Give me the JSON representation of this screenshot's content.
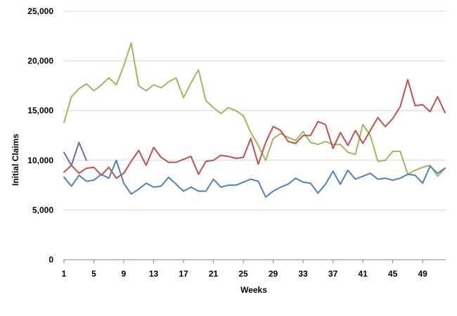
{
  "chart_data": {
    "type": "line",
    "title": "",
    "xlabel": "Weeks",
    "ylabel": "Initial Claims",
    "ylim": [
      0,
      25000
    ],
    "xlim": [
      1,
      52
    ],
    "grid": true,
    "y_ticks": [
      0,
      5000,
      10000,
      15000,
      20000,
      25000
    ],
    "y_tick_labels": [
      "0",
      "5,000",
      "10,000",
      "15,000",
      "20,000",
      "25,000"
    ],
    "x_ticks": [
      1,
      5,
      9,
      13,
      17,
      21,
      25,
      29,
      33,
      37,
      41,
      45,
      49
    ],
    "x_tick_labels": [
      "1",
      "5",
      "9",
      "13",
      "17",
      "21",
      "25",
      "29",
      "33",
      "37",
      "41",
      "45",
      "49"
    ],
    "series": [
      {
        "color": "#9bbb59",
        "x": [
          1,
          2,
          3,
          4,
          5,
          6,
          7,
          8,
          9,
          10,
          11,
          12,
          13,
          14,
          15,
          16,
          17,
          18,
          19,
          20,
          21,
          22,
          23,
          24,
          25,
          26,
          27,
          28,
          29,
          30,
          31,
          32,
          33,
          34,
          35,
          36,
          37,
          38,
          39,
          40,
          41,
          42,
          43,
          44,
          45,
          46,
          47,
          48,
          49,
          50,
          51,
          52
        ],
        "values": [
          13800,
          16400,
          17200,
          17700,
          17000,
          17600,
          18300,
          17600,
          19500,
          21800,
          17500,
          17000,
          17600,
          17300,
          17900,
          18300,
          16300,
          17800,
          19100,
          16000,
          15300,
          14700,
          15300,
          15000,
          14500,
          12800,
          11500,
          10000,
          12200,
          12700,
          12300,
          12000,
          12900,
          11800,
          11600,
          11900,
          11600,
          11600,
          10800,
          10600,
          13600,
          12500,
          9900,
          10000,
          10900,
          10900,
          8600,
          9000,
          9300,
          9500,
          8400,
          9200
        ]
      },
      {
        "color": "#c0504d",
        "x": [
          1,
          2,
          3,
          4,
          5,
          6,
          7,
          8,
          9,
          10,
          11,
          12,
          13,
          14,
          15,
          16,
          17,
          18,
          19,
          20,
          21,
          22,
          23,
          24,
          25,
          26,
          27,
          28,
          29,
          30,
          31,
          32,
          33,
          34,
          35,
          36,
          37,
          38,
          39,
          40,
          41,
          42,
          43,
          44,
          45,
          46,
          47,
          48,
          49,
          50,
          51,
          52
        ],
        "values": [
          8800,
          9500,
          8700,
          9200,
          9300,
          8500,
          9300,
          8200,
          8700,
          9900,
          11000,
          9500,
          11300,
          10300,
          9800,
          9800,
          10100,
          10400,
          8600,
          9900,
          10000,
          10500,
          10400,
          10200,
          10300,
          12200,
          9600,
          11800,
          13400,
          13000,
          11900,
          11700,
          12500,
          12500,
          13900,
          13600,
          11200,
          12800,
          11500,
          13000,
          11700,
          13000,
          14300,
          13400,
          14200,
          15400,
          18100,
          15500,
          15600,
          14900,
          16400,
          14800
        ]
      },
      {
        "color": "#4f81bd",
        "x": [
          1,
          2,
          3,
          4,
          5,
          6,
          7,
          8,
          9,
          10,
          11,
          12,
          13,
          14,
          15,
          16,
          17,
          18,
          19,
          20,
          21,
          22,
          23,
          24,
          25,
          26,
          27,
          28,
          29,
          30,
          31,
          32,
          33,
          34,
          35,
          36,
          37,
          38,
          39,
          40,
          41,
          42,
          43,
          44,
          45,
          46,
          47,
          48,
          49,
          50,
          51,
          52
        ],
        "values": [
          8300,
          7400,
          8500,
          7900,
          8000,
          8600,
          8200,
          10000,
          7700,
          6600,
          7100,
          7700,
          7300,
          7400,
          8300,
          7600,
          6900,
          7300,
          6900,
          6900,
          8100,
          7300,
          7500,
          7500,
          7800,
          8100,
          7900,
          6300,
          6900,
          7300,
          7600,
          8200,
          7800,
          7700,
          6700,
          7600,
          8900,
          7600,
          9000,
          8100,
          8400,
          8700,
          8100,
          8200,
          8000,
          8200,
          8600,
          8500,
          7700,
          9400,
          8700,
          9200
        ]
      },
      {
        "color": "#8064a2",
        "x": [
          1,
          2,
          3,
          4
        ],
        "values": [
          10800,
          9500,
          11800,
          10000
        ]
      }
    ]
  }
}
